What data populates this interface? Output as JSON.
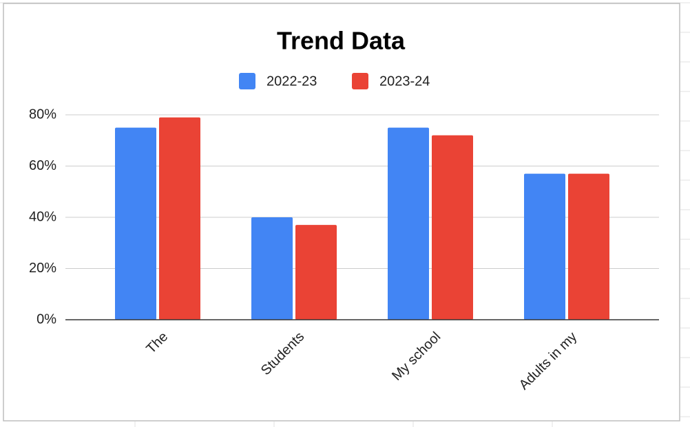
{
  "chart_data": {
    "type": "bar",
    "title": "Trend Data",
    "categories": [
      "The",
      "Students",
      "My school",
      "Adults in my"
    ],
    "series": [
      {
        "name": "2022-23",
        "color": "#4285f4",
        "values": [
          75,
          40,
          75,
          57
        ]
      },
      {
        "name": "2023-24",
        "color": "#ea4335",
        "values": [
          79,
          37,
          72,
          57
        ]
      }
    ],
    "ylim": [
      0,
      80
    ],
    "yticks": [
      {
        "value": 0,
        "label": "0%"
      },
      {
        "value": 20,
        "label": "20%"
      },
      {
        "value": 40,
        "label": "40%"
      },
      {
        "value": 60,
        "label": "60%"
      },
      {
        "value": 80,
        "label": "80%"
      }
    ],
    "grid": true,
    "legend": "top"
  }
}
